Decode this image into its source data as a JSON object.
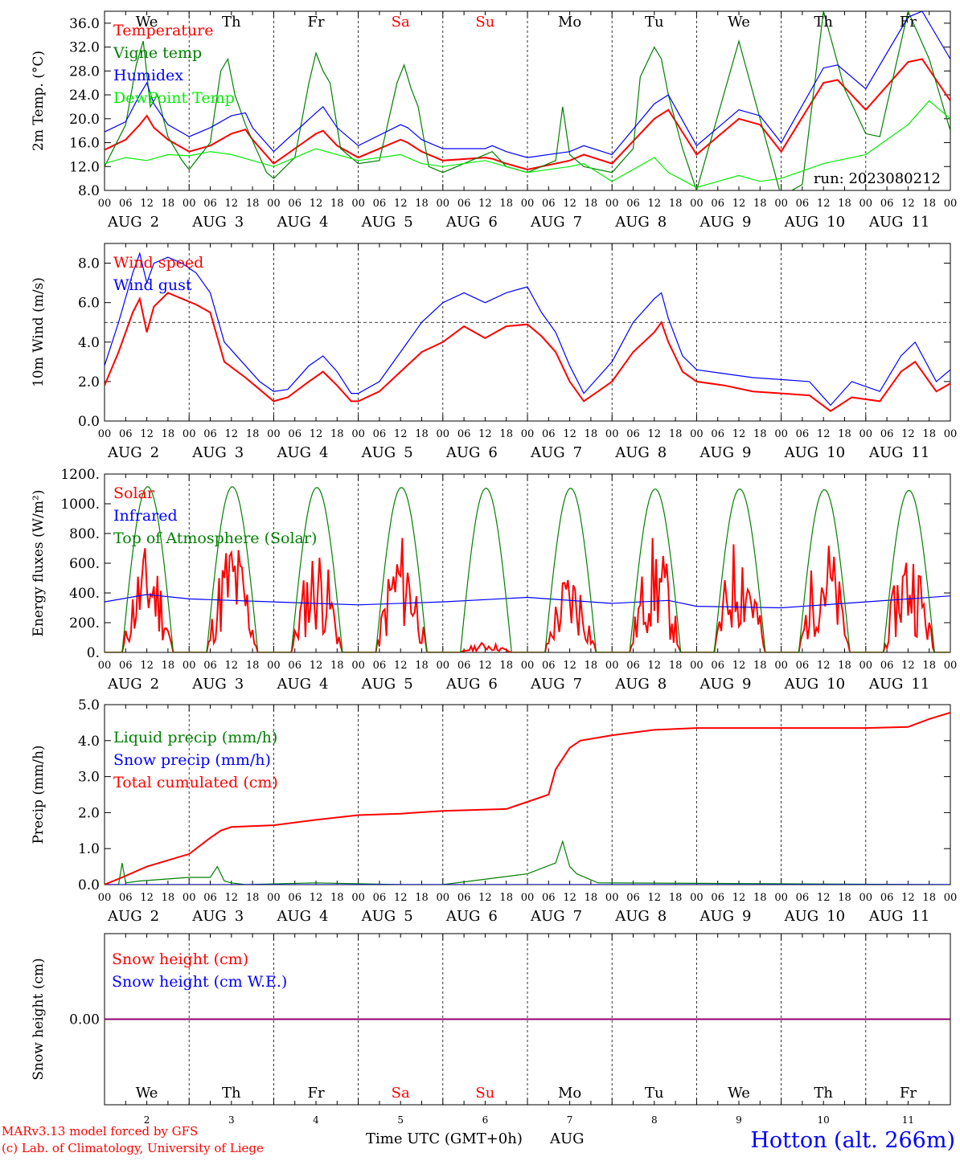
{
  "days": [
    "2",
    "3",
    "4",
    "5",
    "6",
    "7",
    "8",
    "9",
    "10",
    "11"
  ],
  "month": "AUG",
  "weekdays": [
    {
      "label": "We",
      "color": "#000000"
    },
    {
      "label": "Th",
      "color": "#000000"
    },
    {
      "label": "Fr",
      "color": "#000000"
    },
    {
      "label": "Sa",
      "color": "#ff0000"
    },
    {
      "label": "Su",
      "color": "#ff0000"
    },
    {
      "label": "Mo",
      "color": "#000000"
    },
    {
      "label": "Tu",
      "color": "#000000"
    },
    {
      "label": "We",
      "color": "#000000"
    },
    {
      "label": "Th",
      "color": "#000000"
    },
    {
      "label": "Fr",
      "color": "#000000"
    }
  ],
  "hour_ticks": [
    "00",
    "06",
    "12",
    "18"
  ],
  "x_axis_end_label": "00",
  "colors": {
    "red": "#ff0000",
    "green": "#008000",
    "blue": "#0000ff",
    "lightgreen": "#00ee00",
    "purple": "#800080"
  },
  "footer": {
    "model": "MARv3.13 model forced by GFS",
    "lab": "(c) Lab. of Climatology, University of Liege",
    "xlabel": "Time UTC (GMT+0h)",
    "month": "AUG",
    "station": "Hotton (alt. 266m)"
  },
  "chart_data": [
    {
      "type": "line",
      "ylabel": "2m Temp. (°C)",
      "ylim": [
        8,
        38
      ],
      "yticks": [
        8,
        12,
        16,
        20,
        24,
        28,
        32,
        36
      ],
      "ytick_labels": [
        "8.0",
        "12.0",
        "16.0",
        "20.0",
        "24.0",
        "28.0",
        "32.0",
        "36.0"
      ],
      "grid": false,
      "run_label": "run: 2023080212",
      "legend_position": "left",
      "x_unit": "hours since AUG 2 00 UTC",
      "series": [
        {
          "name": "Temperature",
          "color": "red",
          "x": [
            0,
            6,
            10,
            12,
            14,
            18,
            24,
            30,
            36,
            40,
            42,
            48,
            60,
            62,
            66,
            72,
            84,
            86,
            90,
            96,
            108,
            110,
            114,
            120,
            132,
            136,
            144,
            156,
            160,
            168,
            180,
            186,
            192,
            204,
            208,
            216,
            228,
            232,
            240
          ],
          "values": [
            14.8,
            16.5,
            19.0,
            20.5,
            18.5,
            16.5,
            14.5,
            15.5,
            17.5,
            18.2,
            16.5,
            12.5,
            17.5,
            18.0,
            15.5,
            13.5,
            16.5,
            16.0,
            14.5,
            13.0,
            13.5,
            13.3,
            12.5,
            11.5,
            13.0,
            14.0,
            12.5,
            20.0,
            21.5,
            14.0,
            20.0,
            19.0,
            14.5,
            26.0,
            26.5,
            21.5,
            29.5,
            30.0,
            23.0
          ]
        },
        {
          "name": "Vigne temp",
          "color": "green",
          "x": [
            0,
            6,
            9,
            11,
            13,
            15,
            18,
            22,
            24,
            30,
            33,
            35,
            37,
            40,
            46,
            48,
            54,
            58,
            60,
            62,
            64,
            67,
            72,
            78,
            83,
            85,
            87,
            89,
            92,
            96,
            108,
            110,
            114,
            120,
            128,
            130,
            132,
            136,
            144,
            150,
            152,
            156,
            158,
            160,
            164,
            168,
            180,
            192,
            198,
            204,
            210,
            216,
            220,
            228,
            234,
            240
          ],
          "values": [
            12.0,
            19.0,
            29.0,
            33.0,
            22.0,
            24.0,
            17.0,
            13.0,
            11.5,
            16.0,
            28.0,
            30.0,
            24.0,
            19.0,
            11.0,
            10.0,
            13.5,
            26.0,
            31.0,
            28.0,
            26.0,
            15.0,
            12.5,
            13.0,
            26.0,
            29.0,
            25.0,
            22.0,
            12.0,
            11.0,
            14.0,
            14.5,
            12.0,
            11.0,
            13.0,
            22.0,
            14.0,
            12.0,
            11.0,
            15.0,
            27.0,
            32.0,
            30.0,
            24.0,
            15.0,
            8.0,
            33.0,
            7.0,
            9.0,
            38.0,
            25.0,
            17.5,
            17.0,
            38.0,
            30.0,
            18.0
          ]
        },
        {
          "name": "Humidex",
          "color": "blue",
          "x": [
            0,
            6,
            10,
            12,
            14,
            18,
            24,
            30,
            36,
            40,
            42,
            48,
            60,
            62,
            66,
            72,
            84,
            86,
            90,
            96,
            108,
            110,
            114,
            120,
            132,
            136,
            144,
            156,
            160,
            168,
            180,
            186,
            192,
            204,
            208,
            216,
            228,
            232,
            240
          ],
          "values": [
            17.8,
            19.5,
            24.0,
            26.0,
            22.5,
            19.0,
            17.0,
            18.5,
            20.5,
            21.0,
            18.5,
            14.5,
            21.0,
            22.0,
            18.5,
            15.5,
            19.0,
            18.5,
            16.5,
            15.0,
            15.0,
            15.5,
            14.5,
            13.5,
            14.5,
            15.5,
            14.0,
            22.5,
            24.0,
            15.5,
            21.5,
            20.5,
            16.0,
            28.5,
            29.0,
            25.0,
            37.0,
            38.0,
            30.0
          ]
        },
        {
          "name": "DewPoint Temp",
          "color": "lightgreen",
          "x": [
            0,
            6,
            12,
            18,
            24,
            30,
            36,
            42,
            48,
            60,
            66,
            72,
            84,
            90,
            96,
            108,
            114,
            120,
            132,
            136,
            144,
            156,
            160,
            168,
            180,
            186,
            192,
            204,
            216,
            228,
            234,
            240
          ],
          "values": [
            12.5,
            13.5,
            13.0,
            14.0,
            13.8,
            14.5,
            14.0,
            13.0,
            12.0,
            15.0,
            14.0,
            13.0,
            14.0,
            12.5,
            12.0,
            13.0,
            12.0,
            11.0,
            12.0,
            12.5,
            9.5,
            13.5,
            11.0,
            8.5,
            10.5,
            9.5,
            10.0,
            12.5,
            14.0,
            19.0,
            23.0,
            20.0
          ]
        }
      ]
    },
    {
      "type": "line",
      "ylabel": "10m Wind (m/s)",
      "ylim": [
        0,
        9
      ],
      "yticks": [
        0,
        2,
        4,
        6,
        8
      ],
      "ytick_labels": [
        "0.0",
        "2.0",
        "4.0",
        "6.0",
        "8.0"
      ],
      "reference_line": 5,
      "grid": false,
      "legend_position": "left",
      "series": [
        {
          "name": "Wind speed",
          "color": "red",
          "x": [
            0,
            4,
            8,
            10,
            12,
            14,
            18,
            22,
            26,
            30,
            34,
            40,
            44,
            48,
            52,
            58,
            62,
            66,
            70,
            72,
            78,
            84,
            90,
            96,
            102,
            108,
            114,
            120,
            124,
            128,
            132,
            136,
            144,
            150,
            156,
            158,
            160,
            164,
            168,
            176,
            184,
            192,
            200,
            206,
            212,
            220,
            226,
            230,
            236,
            240
          ],
          "values": [
            1.8,
            3.5,
            5.5,
            6.2,
            4.5,
            5.8,
            6.5,
            6.2,
            5.9,
            5.5,
            3.0,
            2.2,
            1.6,
            1.0,
            1.2,
            2.0,
            2.5,
            1.8,
            1.0,
            1.0,
            1.5,
            2.5,
            3.5,
            4.0,
            4.8,
            4.2,
            4.8,
            4.9,
            4.3,
            3.5,
            2.0,
            1.0,
            2.0,
            3.5,
            4.5,
            5.0,
            4.0,
            2.5,
            2.0,
            1.8,
            1.5,
            1.4,
            1.3,
            0.5,
            1.2,
            1.0,
            2.5,
            3.0,
            1.5,
            1.9
          ]
        },
        {
          "name": "Wind gust",
          "color": "blue",
          "x": [
            0,
            4,
            8,
            10,
            12,
            14,
            18,
            22,
            26,
            30,
            34,
            40,
            44,
            48,
            52,
            58,
            62,
            66,
            70,
            72,
            78,
            84,
            90,
            96,
            102,
            108,
            114,
            120,
            124,
            128,
            132,
            136,
            144,
            150,
            156,
            158,
            160,
            164,
            168,
            176,
            184,
            192,
            200,
            206,
            212,
            220,
            226,
            230,
            236,
            240
          ],
          "values": [
            2.8,
            5.0,
            7.5,
            8.5,
            7.0,
            8.0,
            8.3,
            8.0,
            7.5,
            6.5,
            4.0,
            2.8,
            2.0,
            1.5,
            1.6,
            2.8,
            3.3,
            2.5,
            1.4,
            1.4,
            2.0,
            3.5,
            5.0,
            6.0,
            6.5,
            6.0,
            6.5,
            6.8,
            5.5,
            4.5,
            2.8,
            1.4,
            3.0,
            5.0,
            6.2,
            6.5,
            5.2,
            3.3,
            2.6,
            2.4,
            2.2,
            2.1,
            2.0,
            0.8,
            2.0,
            1.5,
            3.3,
            4.0,
            2.0,
            2.6
          ]
        }
      ]
    },
    {
      "type": "line",
      "ylabel": "Energy fluxes (W/m²)",
      "ylim": [
        0,
        1200
      ],
      "yticks": [
        0,
        200,
        400,
        600,
        800,
        1000,
        1200
      ],
      "ytick_labels": [
        "0.",
        "200.",
        "400.",
        "600.",
        "800.",
        "1000.",
        "1200."
      ],
      "grid": false,
      "legend_position": "left",
      "series": [
        {
          "name": "Solar",
          "color": "red",
          "daily_peak_values": [
            740,
            820,
            750,
            820,
            70,
            590,
            800,
            830,
            820,
            770
          ]
        },
        {
          "name": "Infrared",
          "color": "blue",
          "x": [
            0,
            12,
            24,
            48,
            60,
            72,
            96,
            120,
            144,
            160,
            168,
            192,
            216,
            240
          ],
          "values": [
            340,
            390,
            360,
            340,
            330,
            320,
            340,
            370,
            330,
            350,
            310,
            300,
            340,
            380
          ]
        },
        {
          "name": "Top of Atmosphere (Solar)",
          "color": "green",
          "daily_peak_values": [
            1115,
            1115,
            1110,
            1110,
            1105,
            1105,
            1100,
            1100,
            1095,
            1090
          ]
        }
      ]
    },
    {
      "type": "line",
      "ylabel": "Precip (mm/h)",
      "ylim": [
        0,
        5
      ],
      "yticks": [
        0,
        1,
        2,
        3,
        4,
        5
      ],
      "ytick_labels": [
        "0.0",
        "1.0",
        "2.0",
        "3.0",
        "4.0",
        "5.0"
      ],
      "grid": false,
      "legend_position": "left",
      "series": [
        {
          "name": "Liquid precip (mm/h)",
          "color": "green",
          "x": [
            0,
            4,
            5,
            6,
            10,
            24,
            30,
            32,
            34,
            36,
            40,
            60,
            84,
            96,
            120,
            128,
            130,
            132,
            134,
            140,
            240
          ],
          "values": [
            0,
            0,
            0.6,
            0.05,
            0.1,
            0.2,
            0.2,
            0.5,
            0.1,
            0.05,
            0,
            0.05,
            0,
            0,
            0.3,
            0.6,
            1.2,
            0.5,
            0.3,
            0.05,
            0
          ]
        },
        {
          "name": "Snow precip (mm/h)",
          "color": "blue",
          "x": [
            0,
            240
          ],
          "values": [
            0,
            0
          ]
        },
        {
          "name": "Total cumulated (cm)",
          "color": "red",
          "x": [
            0,
            5,
            12,
            24,
            30,
            33,
            36,
            48,
            60,
            72,
            84,
            96,
            114,
            120,
            126,
            128,
            132,
            135,
            144,
            156,
            168,
            216,
            228,
            234,
            240
          ],
          "values": [
            0,
            0.2,
            0.5,
            0.85,
            1.3,
            1.5,
            1.6,
            1.65,
            1.8,
            1.93,
            1.97,
            2.05,
            2.1,
            2.3,
            2.5,
            3.2,
            3.8,
            4.0,
            4.15,
            4.3,
            4.35,
            4.35,
            4.38,
            4.6,
            4.78
          ]
        }
      ]
    },
    {
      "type": "line",
      "ylabel": "Snow height (cm)",
      "ylim": [
        -1,
        1
      ],
      "yticks": [
        0
      ],
      "ytick_labels": [
        "0.00"
      ],
      "grid": false,
      "legend_position": "left",
      "series": [
        {
          "name": "Snow height (cm)",
          "color": "red",
          "x": [
            0,
            240
          ],
          "values": [
            0,
            0
          ]
        },
        {
          "name": "Snow height (cm W.E.)",
          "color": "blue",
          "x": [
            0,
            240
          ],
          "values": [
            0,
            0
          ]
        }
      ]
    }
  ]
}
